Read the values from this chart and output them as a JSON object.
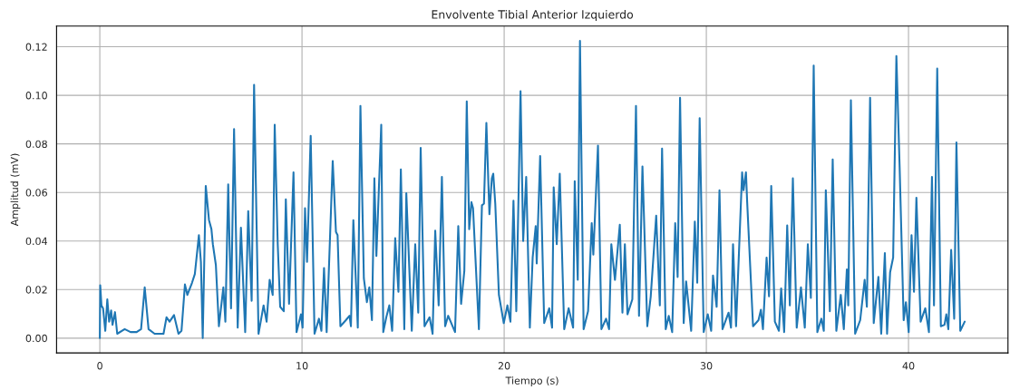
{
  "chart_data": {
    "type": "line",
    "title": "Envolvente Tibial Anterior Izquierdo",
    "xlabel": "Tiempo (s)",
    "ylabel": "Amplitud (mV)",
    "xlim": [
      -2.14,
      44.92
    ],
    "ylim": [
      -0.0061,
      0.1285
    ],
    "xticks": [
      0,
      10,
      20,
      30,
      40
    ],
    "yticks": [
      {
        "value": 0,
        "label": "0.00"
      },
      {
        "value": 0.02,
        "label": "0.02"
      },
      {
        "value": 0.04,
        "label": "0.04"
      },
      {
        "value": 0.06,
        "label": "0.06"
      },
      {
        "value": 0.08,
        "label": "0.08"
      },
      {
        "value": 0.1,
        "label": "0.10"
      },
      {
        "value": 0.12,
        "label": "0.12"
      }
    ],
    "grid": true,
    "line_style": "solid",
    "marker": "none",
    "series": [
      {
        "color": "#1f77b4",
        "x": [
          0,
          0.02,
          0.08,
          0.16,
          0.27,
          0.37,
          0.46,
          0.56,
          0.63,
          0.75,
          0.86,
          1.23,
          1.52,
          1.82,
          2.04,
          2.22,
          2.41,
          2.71,
          3.15,
          3.3,
          3.45,
          3.67,
          3.89,
          4.04,
          4.21,
          4.33,
          4.56,
          4.7,
          4.9,
          5.0,
          5.09,
          5.24,
          5.4,
          5.52,
          5.59,
          5.74,
          5.89,
          6.11,
          6.21,
          6.35,
          6.49,
          6.64,
          6.82,
          6.98,
          7.19,
          7.34,
          7.51,
          7.63,
          7.85,
          8.1,
          8.25,
          8.4,
          8.55,
          8.65,
          8.8,
          8.92,
          9.1,
          9.2,
          9.36,
          9.58,
          9.73,
          9.95,
          10.03,
          10.15,
          10.25,
          10.43,
          10.62,
          10.84,
          10.96,
          11.09,
          11.22,
          11.52,
          11.68,
          11.76,
          11.9,
          12.17,
          12.35,
          12.42,
          12.54,
          12.76,
          12.89,
          13.06,
          13.21,
          13.33,
          13.46,
          13.58,
          13.68,
          13.92,
          14.02,
          14.17,
          14.32,
          14.46,
          14.61,
          14.77,
          14.89,
          15.06,
          15.16,
          15.43,
          15.6,
          15.75,
          15.87,
          16.06,
          16.31,
          16.46,
          16.59,
          16.76,
          16.92,
          17.08,
          17.23,
          17.57,
          17.73,
          17.87,
          18.03,
          18.15,
          18.27,
          18.38,
          18.46,
          18.75,
          18.9,
          19.0,
          19.12,
          19.27,
          19.39,
          19.46,
          19.56,
          19.74,
          19.98,
          20.16,
          20.31,
          20.46,
          20.6,
          20.81,
          20.94,
          21.09,
          21.27,
          21.41,
          21.56,
          21.61,
          21.78,
          21.98,
          22.23,
          22.37,
          22.45,
          22.6,
          22.75,
          22.97,
          23.19,
          23.41,
          23.49,
          23.64,
          23.75,
          23.93,
          24.15,
          24.33,
          24.41,
          24.64,
          24.81,
          25.04,
          25.19,
          25.3,
          25.48,
          25.72,
          25.85,
          25.97,
          26.1,
          26.34,
          26.52,
          26.67,
          26.84,
          27.08,
          27.25,
          27.52,
          27.7,
          27.81,
          27.99,
          28.14,
          28.31,
          28.46,
          28.58,
          28.7,
          28.88,
          29.0,
          29.25,
          29.43,
          29.55,
          29.67,
          29.87,
          30.07,
          30.24,
          30.33,
          30.51,
          30.65,
          30.8,
          31.1,
          31.22,
          31.32,
          31.47,
          31.77,
          31.84,
          31.96,
          32.02,
          32.31,
          32.58,
          32.7,
          32.8,
          32.98,
          33.1,
          33.21,
          33.39,
          33.59,
          33.7,
          33.85,
          34.0,
          34.13,
          34.28,
          34.47,
          34.68,
          34.87,
          35.02,
          35.17,
          35.31,
          35.49,
          35.69,
          35.81,
          35.91,
          36.11,
          36.25,
          36.43,
          36.65,
          36.8,
          36.95,
          37.02,
          37.15,
          37.36,
          37.61,
          37.83,
          37.94,
          38.1,
          38.28,
          38.51,
          38.65,
          38.83,
          38.94,
          39.09,
          39.24,
          39.4,
          39.56,
          39.76,
          39.87,
          40.01,
          40.15,
          40.27,
          40.39,
          40.6,
          40.83,
          41.01,
          41.16,
          41.26,
          41.42,
          41.6,
          41.78,
          41.87,
          41.97,
          42.11,
          42.26,
          42.37,
          42.56,
          42.78
        ],
        "values": [
          0,
          0.0218,
          0.0135,
          0.0123,
          0.003,
          0.016,
          0.0068,
          0.0114,
          0.0055,
          0.0107,
          0.0018,
          0.0037,
          0.0025,
          0.0025,
          0.0037,
          0.0209,
          0.0037,
          0.0018,
          0.0018,
          0.0086,
          0.0068,
          0.0095,
          0.0018,
          0.003,
          0.0221,
          0.0178,
          0.0228,
          0.0264,
          0.0424,
          0.0314,
          0,
          0.0627,
          0.0486,
          0.0449,
          0.0387,
          0.0301,
          0.0049,
          0.0209,
          0.0068,
          0.0633,
          0.0123,
          0.0861,
          0.0043,
          0.0455,
          0.0025,
          0.0523,
          0.0154,
          0.1043,
          0.0018,
          0.0135,
          0.0068,
          0.024,
          0.0178,
          0.0879,
          0.0387,
          0.0129,
          0.0111,
          0.0572,
          0.0141,
          0.0683,
          0.0025,
          0.0098,
          0.0043,
          0.0535,
          0.0314,
          0.0833,
          0.0018,
          0.008,
          0.003,
          0.0289,
          0.0025,
          0.0729,
          0.0437,
          0.0424,
          0.0049,
          0.0074,
          0.0092,
          0.0049,
          0.0486,
          0.0043,
          0.0956,
          0.0246,
          0.0148,
          0.0209,
          0.0074,
          0.0658,
          0.0338,
          0.0879,
          0.0025,
          0.0086,
          0.0135,
          0.003,
          0.0412,
          0.0191,
          0.0695,
          0.0037,
          0.0597,
          0.003,
          0.0387,
          0.0105,
          0.0784,
          0.0049,
          0.0086,
          0.0018,
          0.0443,
          0.0135,
          0.0664,
          0.0049,
          0.0092,
          0.0025,
          0.0461,
          0.0141,
          0.0277,
          0.0975,
          0.0449,
          0.056,
          0.0535,
          0.0037,
          0.0547,
          0.0554,
          0.0886,
          0.051,
          0.0658,
          0.0677,
          0.0554,
          0.0178,
          0.0062,
          0.0135,
          0.0068,
          0.0566,
          0.0111,
          0.1017,
          0.04,
          0.0664,
          0.0043,
          0.0332,
          0.0461,
          0.0308,
          0.075,
          0.0062,
          0.0123,
          0.0043,
          0.0621,
          0.0387,
          0.0677,
          0.0037,
          0.0123,
          0.0043,
          0.0646,
          0.024,
          0.1224,
          0.0037,
          0.0111,
          0.0474,
          0.0344,
          0.0793,
          0.0037,
          0.008,
          0.0037,
          0.0387,
          0.024,
          0.0467,
          0.0105,
          0.0387,
          0.0098,
          0.016,
          0.0956,
          0.0092,
          0.0707,
          0.0049,
          0.0172,
          0.0504,
          0.0135,
          0.0781,
          0.0037,
          0.0092,
          0.0025,
          0.0474,
          0.0252,
          0.099,
          0.0062,
          0.0234,
          0.003,
          0.048,
          0.0228,
          0.0906,
          0.0025,
          0.0098,
          0.003,
          0.0258,
          0.0129,
          0.0609,
          0.0037,
          0.0105,
          0.0043,
          0.0387,
          0.0049,
          0.0683,
          0.0609,
          0.0683,
          0.056,
          0.0049,
          0.0074,
          0.0117,
          0.0037,
          0.0332,
          0.0172,
          0.0627,
          0.0068,
          0.003,
          0.0205,
          0.0025,
          0.0464,
          0.0135,
          0.0658,
          0.0043,
          0.0209,
          0.0043,
          0.0387,
          0.0166,
          0.1123,
          0.0025,
          0.008,
          0.003,
          0.0609,
          0.0111,
          0.0736,
          0.003,
          0.0178,
          0.0037,
          0.0283,
          0.0135,
          0.098,
          0.0018,
          0.0074,
          0.024,
          0.0129,
          0.099,
          0.0062,
          0.0252,
          0.0018,
          0.035,
          0.0018,
          0.0271,
          0.0332,
          0.1162,
          0.0707,
          0.0074,
          0.0148,
          0.0025,
          0.0424,
          0.0191,
          0.0578,
          0.0068,
          0.0123,
          0.0025,
          0.0664,
          0.0135,
          0.111,
          0.0049,
          0.0055,
          0.0098,
          0.0037,
          0.0363,
          0.008,
          0.0806,
          0.003,
          0.0068
        ]
      }
    ]
  }
}
